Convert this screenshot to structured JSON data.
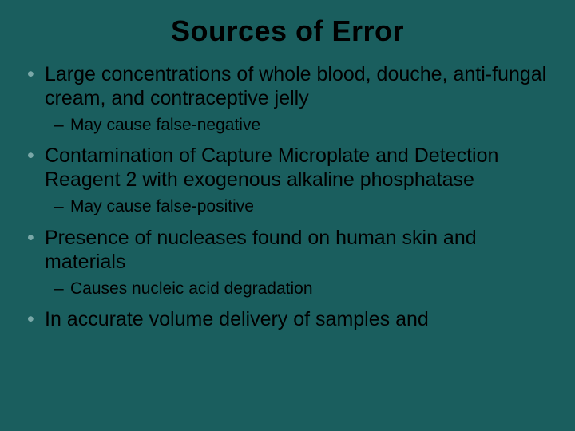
{
  "slide": {
    "title": "Sources of Error",
    "background_color": "#1a5e5e",
    "title_color": "#000000",
    "title_fontsize": 36,
    "body_fontsize": 25,
    "sub_fontsize": 21,
    "bullet_color": "#7aa8a8",
    "text_color": "#000000",
    "items": [
      {
        "text": "Large concentrations of whole blood, douche, anti-fungal cream, and contraceptive jelly",
        "sub": [
          {
            "text": "May cause false-negative"
          }
        ]
      },
      {
        "text": "Contamination of Capture Microplate and Detection Reagent 2 with exogenous alkaline phosphatase",
        "sub": [
          {
            "text": "May cause false-positive"
          }
        ]
      },
      {
        "text": "Presence of nucleases found on human skin and materials",
        "sub": [
          {
            "text": "Causes nucleic acid degradation"
          }
        ]
      },
      {
        "text": "In accurate volume delivery of samples and",
        "sub": []
      }
    ]
  }
}
